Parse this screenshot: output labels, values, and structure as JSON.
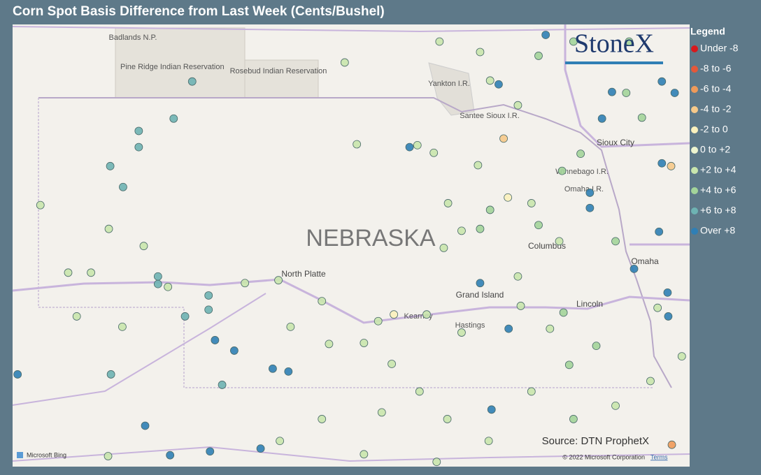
{
  "title": "Corn Spot Basis Difference from Last Week (Cents/Bushel)",
  "map": {
    "region_label": "NEBRASKA",
    "places": [
      "Badlands N.P.",
      "Pine Ridge Indian Reservation",
      "Rosebud Indian Reservation",
      "Yankton I.R.",
      "Santee Sioux I.R.",
      "Sioux City",
      "Winnebago I.R.",
      "Omaha I.R.",
      "Columbus",
      "Omaha",
      "North Platte",
      "Grand Island",
      "Lincoln",
      "Kearney",
      "Hastings"
    ],
    "provider": "Microsoft Bing",
    "copyright": "© 2022 Microsoft Corporation",
    "terms": "Terms"
  },
  "logo": "StoneX",
  "source": "Source: DTN ProphetX",
  "chart_data": {
    "type": "scatter-map",
    "xlim": [
      -104.81,
      -95.31
    ],
    "ylim": [
      39.1,
      43.75
    ],
    "legend": {
      "title": "Legend",
      "position": "right",
      "items": [
        "Under -8",
        "-8 to -6",
        "-6 to -4",
        "-4 to -2",
        "-2 to 0",
        "0 to +2",
        "+2 to +4",
        "+4 to +6",
        "+6 to +8",
        "Over +8"
      ],
      "colors": [
        "#d7191c",
        "#e4583a",
        "#ef9a5a",
        "#f6c98a",
        "#fbf1bd",
        "#eef5cf",
        "#c9e6ad",
        "#a3d49a",
        "#6eb3b3",
        "#2f7fb5"
      ]
    },
    "points": [
      {
        "lon": -102.29,
        "lat": 43.15,
        "bin": 8
      },
      {
        "lon": -102.55,
        "lat": 42.76,
        "bin": 8
      },
      {
        "lon": -103.04,
        "lat": 42.63,
        "bin": 8
      },
      {
        "lon": -103.04,
        "lat": 42.46,
        "bin": 8
      },
      {
        "lon": -103.44,
        "lat": 42.26,
        "bin": 8
      },
      {
        "lon": -103.26,
        "lat": 42.04,
        "bin": 8
      },
      {
        "lon": -104.42,
        "lat": 41.85,
        "bin": 6
      },
      {
        "lon": -103.46,
        "lat": 41.6,
        "bin": 6
      },
      {
        "lon": -102.97,
        "lat": 41.42,
        "bin": 6
      },
      {
        "lon": -104.03,
        "lat": 41.14,
        "bin": 6
      },
      {
        "lon": -102.77,
        "lat": 41.1,
        "bin": 8
      },
      {
        "lon": -102.77,
        "lat": 41.02,
        "bin": 8
      },
      {
        "lon": -102.06,
        "lat": 40.9,
        "bin": 8
      },
      {
        "lon": -102.06,
        "lat": 40.75,
        "bin": 8
      },
      {
        "lon": -102.39,
        "lat": 40.68,
        "bin": 8
      },
      {
        "lon": -101.97,
        "lat": 40.43,
        "bin": 9
      },
      {
        "lon": -101.7,
        "lat": 40.32,
        "bin": 9
      },
      {
        "lon": -101.16,
        "lat": 40.13,
        "bin": 9
      },
      {
        "lon": -100.94,
        "lat": 40.1,
        "bin": 9
      },
      {
        "lon": -101.87,
        "lat": 39.96,
        "bin": 8
      },
      {
        "lon": -103.43,
        "lat": 40.07,
        "bin": 8
      },
      {
        "lon": -104.74,
        "lat": 40.07,
        "bin": 9
      },
      {
        "lon": -102.95,
        "lat": 39.53,
        "bin": 9
      },
      {
        "lon": -102.6,
        "lat": 39.22,
        "bin": 9
      },
      {
        "lon": -102.04,
        "lat": 39.26,
        "bin": 9
      },
      {
        "lon": -101.33,
        "lat": 39.29,
        "bin": 9
      },
      {
        "lon": -100.15,
        "lat": 43.35,
        "bin": 6
      },
      {
        "lon": -99.24,
        "lat": 42.46,
        "bin": 9
      },
      {
        "lon": -99.98,
        "lat": 42.49,
        "bin": 6
      },
      {
        "lon": -101.08,
        "lat": 41.06,
        "bin": 6
      },
      {
        "lon": -100.47,
        "lat": 40.84,
        "bin": 6
      },
      {
        "lon": -99.46,
        "lat": 40.7,
        "bin": 4
      },
      {
        "lon": -99.68,
        "lat": 40.63,
        "bin": 6
      },
      {
        "lon": -99.0,
        "lat": 40.7,
        "bin": 6
      },
      {
        "lon": -98.51,
        "lat": 40.51,
        "bin": 6
      },
      {
        "lon": -98.25,
        "lat": 41.03,
        "bin": 9
      },
      {
        "lon": -97.85,
        "lat": 40.55,
        "bin": 9
      },
      {
        "lon": -97.92,
        "lat": 42.55,
        "bin": 3
      },
      {
        "lon": -97.86,
        "lat": 41.93,
        "bin": 4
      },
      {
        "lon": -97.99,
        "lat": 43.12,
        "bin": 9
      },
      {
        "lon": -97.33,
        "lat": 43.64,
        "bin": 9
      },
      {
        "lon": -96.71,
        "lat": 41.98,
        "bin": 9
      },
      {
        "lon": -96.71,
        "lat": 41.82,
        "bin": 9
      },
      {
        "lon": -96.54,
        "lat": 42.76,
        "bin": 9
      },
      {
        "lon": -96.4,
        "lat": 43.04,
        "bin": 9
      },
      {
        "lon": -95.7,
        "lat": 43.15,
        "bin": 9
      },
      {
        "lon": -95.52,
        "lat": 43.03,
        "bin": 9
      },
      {
        "lon": -95.7,
        "lat": 42.29,
        "bin": 9
      },
      {
        "lon": -95.57,
        "lat": 42.26,
        "bin": 3
      },
      {
        "lon": -95.74,
        "lat": 41.57,
        "bin": 9
      },
      {
        "lon": -96.09,
        "lat": 41.18,
        "bin": 9
      },
      {
        "lon": -95.62,
        "lat": 40.93,
        "bin": 9
      },
      {
        "lon": -95.61,
        "lat": 40.68,
        "bin": 9
      },
      {
        "lon": -98.09,
        "lat": 39.7,
        "bin": 9
      },
      {
        "lon": -95.56,
        "lat": 39.33,
        "bin": 2
      },
      {
        "lon": -98.82,
        "lat": 43.57,
        "bin": 6
      },
      {
        "lon": -98.25,
        "lat": 43.46,
        "bin": 6
      },
      {
        "lon": -97.72,
        "lat": 42.9,
        "bin": 6
      },
      {
        "lon": -98.28,
        "lat": 42.27,
        "bin": 6
      },
      {
        "lon": -98.11,
        "lat": 41.8,
        "bin": 7
      },
      {
        "lon": -98.25,
        "lat": 41.6,
        "bin": 7
      },
      {
        "lon": -97.53,
        "lat": 41.87,
        "bin": 6
      },
      {
        "lon": -97.1,
        "lat": 42.21,
        "bin": 7
      },
      {
        "lon": -97.43,
        "lat": 41.64,
        "bin": 7
      },
      {
        "lon": -97.14,
        "lat": 41.47,
        "bin": 6
      },
      {
        "lon": -97.72,
        "lat": 41.1,
        "bin": 6
      },
      {
        "lon": -97.08,
        "lat": 40.72,
        "bin": 7
      },
      {
        "lon": -97.68,
        "lat": 40.79,
        "bin": 6
      },
      {
        "lon": -97.27,
        "lat": 40.55,
        "bin": 6
      },
      {
        "lon": -97.0,
        "lat": 40.17,
        "bin": 7
      },
      {
        "lon": -96.62,
        "lat": 40.37,
        "bin": 7
      },
      {
        "lon": -96.35,
        "lat": 41.47,
        "bin": 7
      },
      {
        "lon": -95.98,
        "lat": 42.77,
        "bin": 7
      },
      {
        "lon": -96.2,
        "lat": 43.03,
        "bin": 7
      },
      {
        "lon": -96.84,
        "lat": 42.39,
        "bin": 7
      },
      {
        "lon": -98.76,
        "lat": 41.4,
        "bin": 6
      },
      {
        "lon": -99.88,
        "lat": 40.4,
        "bin": 6
      },
      {
        "lon": -100.91,
        "lat": 40.57,
        "bin": 6
      },
      {
        "lon": -100.37,
        "lat": 40.39,
        "bin": 6
      },
      {
        "lon": -99.49,
        "lat": 40.18,
        "bin": 6
      },
      {
        "lon": -99.1,
        "lat": 39.89,
        "bin": 6
      },
      {
        "lon": -99.63,
        "lat": 39.67,
        "bin": 6
      },
      {
        "lon": -100.47,
        "lat": 39.6,
        "bin": 6
      },
      {
        "lon": -101.06,
        "lat": 39.37,
        "bin": 6
      },
      {
        "lon": -99.88,
        "lat": 39.23,
        "bin": 6
      },
      {
        "lon": -98.71,
        "lat": 39.6,
        "bin": 6
      },
      {
        "lon": -98.13,
        "lat": 39.37,
        "bin": 6
      },
      {
        "lon": -97.53,
        "lat": 39.89,
        "bin": 6
      },
      {
        "lon": -96.94,
        "lat": 39.6,
        "bin": 7
      },
      {
        "lon": -96.35,
        "lat": 39.74,
        "bin": 6
      },
      {
        "lon": -95.86,
        "lat": 40.0,
        "bin": 6
      },
      {
        "lon": -95.76,
        "lat": 40.77,
        "bin": 6
      },
      {
        "lon": -95.42,
        "lat": 40.26,
        "bin": 6
      },
      {
        "lon": -103.47,
        "lat": 39.21,
        "bin": 6
      },
      {
        "lon": -103.71,
        "lat": 41.14,
        "bin": 6
      },
      {
        "lon": -103.91,
        "lat": 40.68,
        "bin": 6
      },
      {
        "lon": -103.27,
        "lat": 40.57,
        "bin": 6
      },
      {
        "lon": -102.63,
        "lat": 40.99,
        "bin": 6
      },
      {
        "lon": -101.55,
        "lat": 41.03,
        "bin": 6
      },
      {
        "lon": -99.13,
        "lat": 42.48,
        "bin": 6
      },
      {
        "lon": -98.9,
        "lat": 42.4,
        "bin": 6
      },
      {
        "lon": -98.7,
        "lat": 41.87,
        "bin": 6
      },
      {
        "lon": -98.51,
        "lat": 41.58,
        "bin": 6
      },
      {
        "lon": -98.11,
        "lat": 43.16,
        "bin": 6
      },
      {
        "lon": -97.43,
        "lat": 43.42,
        "bin": 7
      },
      {
        "lon": -96.94,
        "lat": 43.57,
        "bin": 7
      },
      {
        "lon": -96.16,
        "lat": 43.57,
        "bin": 7
      },
      {
        "lon": -98.86,
        "lat": 39.15,
        "bin": 6
      }
    ]
  }
}
